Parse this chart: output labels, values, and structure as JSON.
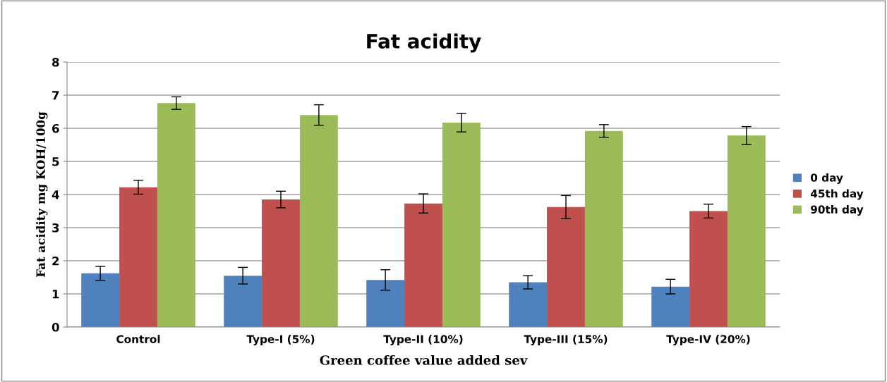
{
  "chart_data": {
    "type": "bar",
    "title": "Fat acidity",
    "xlabel": "Green coffee value added sev",
    "ylabel": "Fat acidity mg KOH/100g",
    "categories": [
      "Control",
      "Type-I (5%)",
      "Type-II (10%)",
      "Type-III (15%)",
      "Type-IV (20%)"
    ],
    "series": [
      {
        "name": "0 day",
        "color": "#4f81bd",
        "values": [
          1.62,
          1.55,
          1.42,
          1.35,
          1.22
        ],
        "errors": [
          0.21,
          0.25,
          0.31,
          0.2,
          0.22
        ]
      },
      {
        "name": "45th day",
        "color": "#c0504d",
        "values": [
          4.22,
          3.85,
          3.73,
          3.62,
          3.5
        ],
        "errors": [
          0.21,
          0.25,
          0.29,
          0.35,
          0.21
        ]
      },
      {
        "name": "90th day",
        "color": "#9bbb59",
        "values": [
          6.76,
          6.4,
          6.17,
          5.92,
          5.78
        ],
        "errors": [
          0.19,
          0.31,
          0.28,
          0.19,
          0.27
        ]
      }
    ],
    "ylim": [
      0,
      8
    ],
    "yticks": [
      0,
      1,
      2,
      3,
      4,
      5,
      6,
      7,
      8
    ],
    "grid": "y",
    "legend": "right"
  }
}
